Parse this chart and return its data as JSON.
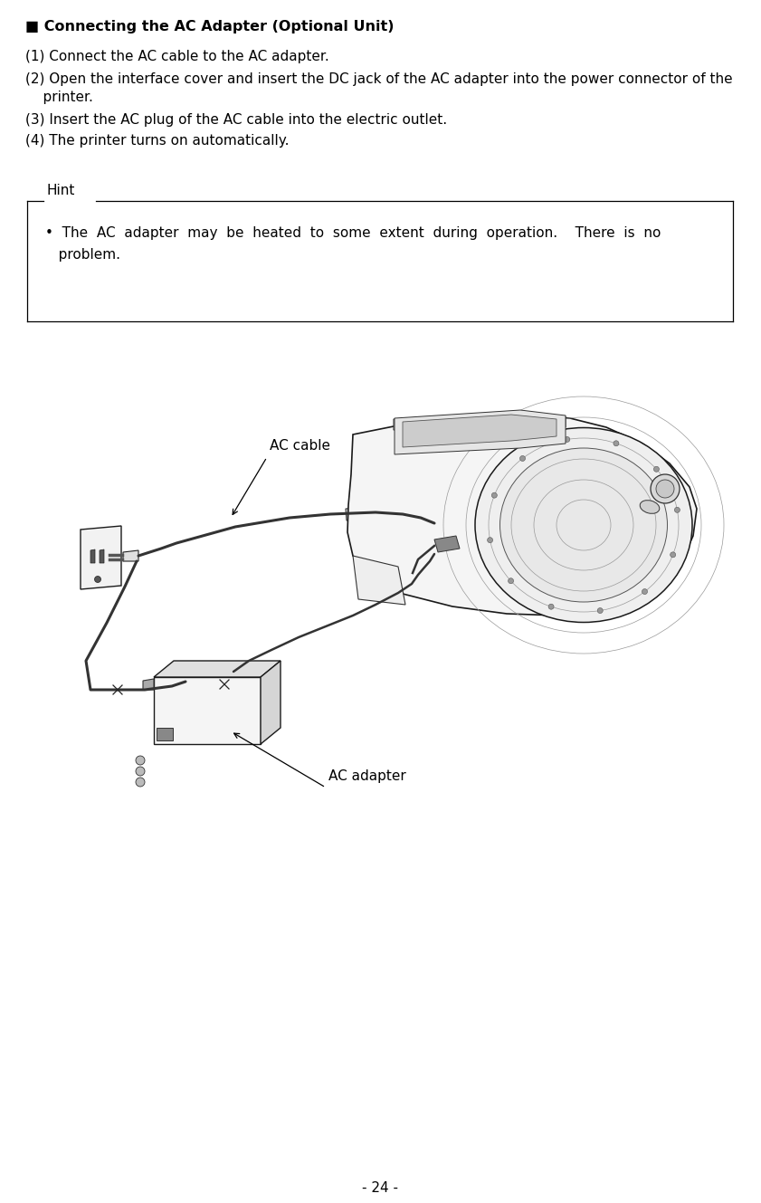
{
  "title": "■ Connecting the AC Adapter (Optional Unit)",
  "step1": "(1) Connect the AC cable to the AC adapter.",
  "step2": "(2) Open the interface cover and insert the DC jack of the AC adapter into the power connector of the",
  "step2b": "    printer.",
  "step3": "(3) Insert the AC plug of the AC cable into the electric outlet.",
  "step4": "(4) The printer turns on automatically.",
  "hint_label": "Hint",
  "hint_line1": "•  The  AC  adapter  may  be  heated  to  some  extent  during  operation.    There  is  no",
  "hint_line2": "   problem.",
  "label_ac_cable": "AC cable",
  "label_ac_adapter": "AC adapter",
  "page_number": "- 24 -",
  "bg_color": "#ffffff",
  "text_color": "#000000",
  "title_fontsize": 11.5,
  "body_fontsize": 11,
  "hint_fontsize": 11,
  "page_fontsize": 11
}
